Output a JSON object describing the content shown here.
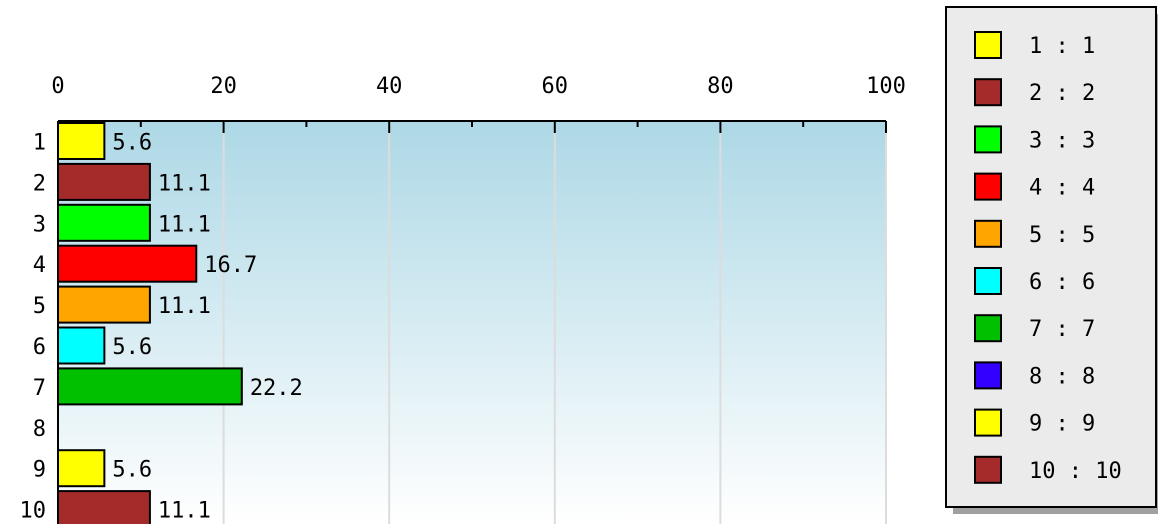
{
  "chart_data": {
    "type": "bar",
    "orientation": "horizontal",
    "categories": [
      "1",
      "2",
      "3",
      "4",
      "5",
      "6",
      "7",
      "8",
      "9",
      "10"
    ],
    "values": [
      5.6,
      11.1,
      11.1,
      16.7,
      11.1,
      5.6,
      22.2,
      0,
      5.6,
      11.1
    ],
    "value_labels": [
      "5.6",
      "11.1",
      "11.1",
      "16.7",
      "11.1",
      "5.6",
      "22.2",
      "",
      "5.6",
      "11.1"
    ],
    "bar_colors": [
      "#ffff00",
      "#a52a2a",
      "#00ff00",
      "#ff0000",
      "#ffa500",
      "#00ffff",
      "#00c000",
      "#3300ff",
      "#ffff00",
      "#a52a2a"
    ],
    "xlim": [
      0,
      100
    ],
    "x_ticks": [
      "0",
      "20",
      "40",
      "60",
      "80",
      "100"
    ],
    "grid": true,
    "background_gradient": [
      "#add8e6",
      "#ffffff"
    ],
    "title": "",
    "xlabel": "",
    "ylabel": "",
    "legend": {
      "placement": "right",
      "entries": [
        "1 : 1",
        "2 : 2",
        "3 : 3",
        "4 : 4",
        "5 : 5",
        "6 : 6",
        "7 : 7",
        "8 : 8",
        "9 : 9",
        "10 : 10"
      ]
    }
  }
}
